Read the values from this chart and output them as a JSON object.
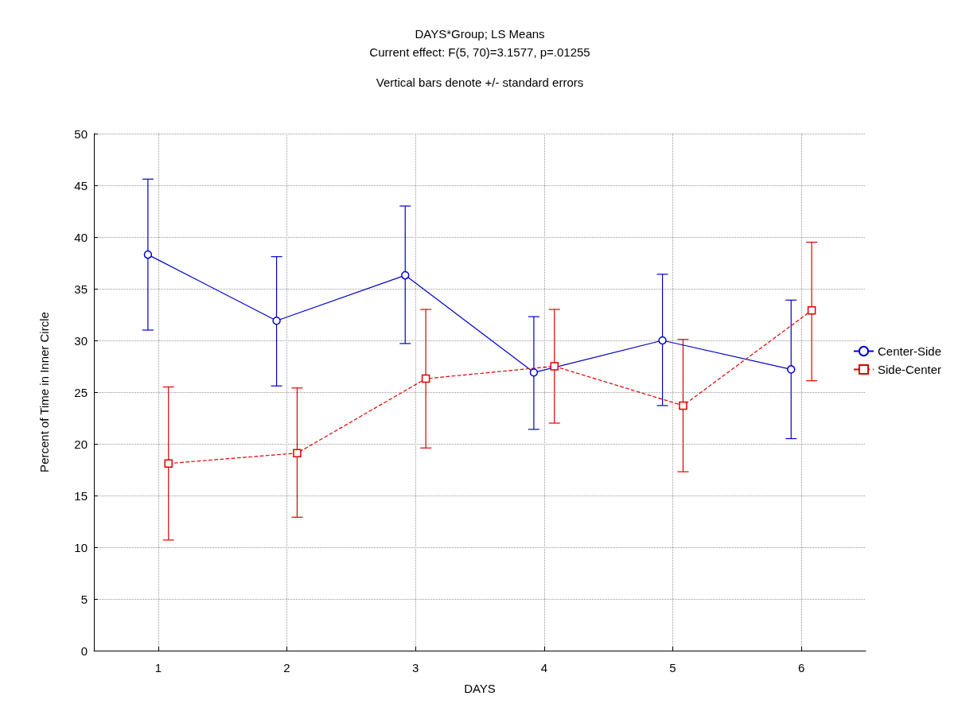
{
  "chart_data": {
    "type": "line",
    "title": "DAYS*Group; LS Means",
    "subtitle": "Current effect: F(5, 70)=3.1577, p=.01255",
    "annotations": [
      "Vertical bars denote +/- standard errors"
    ],
    "xlabel": "DAYS",
    "ylabel": "Percent of Time in Inner Circle",
    "xlim": [
      0.5,
      6.5
    ],
    "xticks": [
      1,
      2,
      3,
      4,
      5,
      6
    ],
    "ylim": [
      0,
      50
    ],
    "yticks": [
      0,
      5,
      10,
      15,
      20,
      25,
      30,
      35,
      40,
      45,
      50
    ],
    "grid": true,
    "legend": "right",
    "series": [
      {
        "name": "Center-Side",
        "color": "#0000cc",
        "marker": "circle",
        "line_style": "solid",
        "x": [
          0.92,
          1.92,
          2.92,
          3.92,
          4.92,
          5.92
        ],
        "values": [
          38.3,
          31.9,
          36.3,
          26.9,
          30.0,
          27.2
        ],
        "errors": [
          [
            31.0,
            45.6
          ],
          [
            25.6,
            38.1
          ],
          [
            29.7,
            43.0
          ],
          [
            21.4,
            32.3
          ],
          [
            23.7,
            36.4
          ],
          [
            20.5,
            33.9
          ]
        ]
      },
      {
        "name": "Side-Center",
        "color": "#dd0000",
        "marker": "square",
        "line_style": "dashed",
        "x": [
          1.08,
          2.08,
          3.08,
          4.08,
          5.08,
          6.08
        ],
        "values": [
          18.1,
          19.1,
          26.3,
          27.5,
          23.7,
          32.9
        ],
        "errors": [
          [
            10.7,
            25.5
          ],
          [
            12.9,
            25.4
          ],
          [
            19.6,
            33.0
          ],
          [
            22.0,
            33.0
          ],
          [
            17.3,
            30.1
          ],
          [
            26.1,
            39.5
          ]
        ]
      }
    ]
  }
}
